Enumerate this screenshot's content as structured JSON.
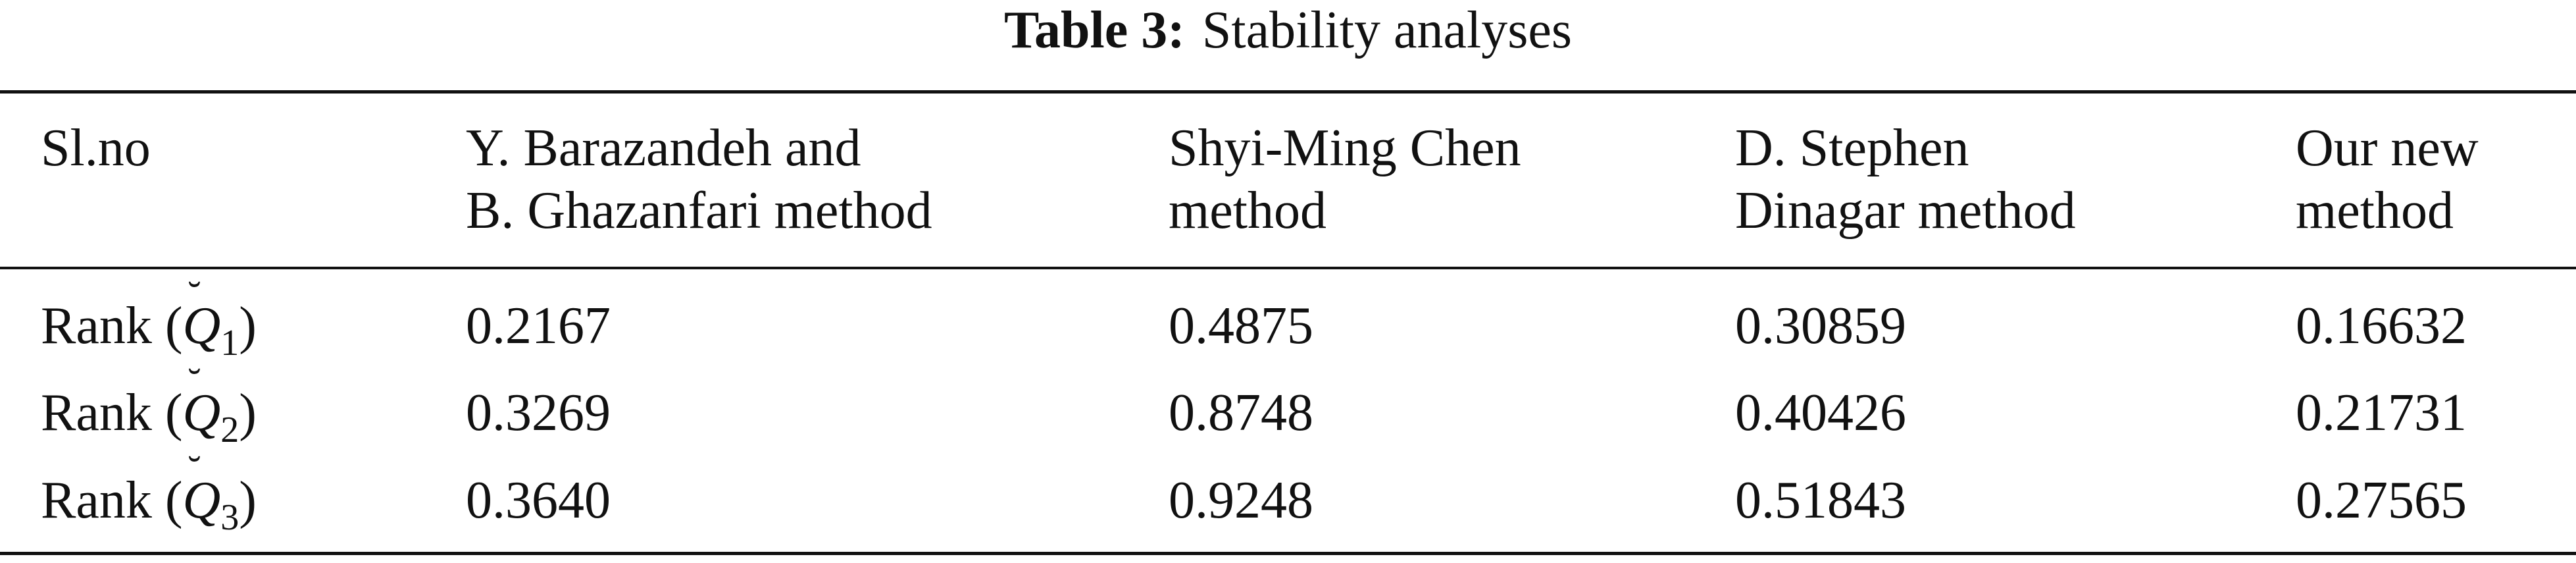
{
  "caption": {
    "label": "Table 3:",
    "title": "Stability analyses"
  },
  "table": {
    "headers": [
      [
        "Sl.no"
      ],
      [
        "Y. Barazandeh and",
        "B. Ghazanfari method"
      ],
      [
        "Shyi-Ming Chen",
        "method"
      ],
      [
        "D. Stephen",
        "Dinagar method"
      ],
      [
        "Our new",
        "method"
      ]
    ],
    "rows": [
      {
        "rank_prefix": "Rank (",
        "symbol": "Q",
        "breve": "˘",
        "subscript": "1",
        "rank_suffix": ")",
        "values": [
          "0.2167",
          "0.4875",
          "0.30859",
          "0.16632"
        ]
      },
      {
        "rank_prefix": "Rank (",
        "symbol": "Q",
        "breve": "˘",
        "subscript": "2",
        "rank_suffix": ")",
        "values": [
          "0.3269",
          "0.8748",
          "0.40426",
          "0.21731"
        ]
      },
      {
        "rank_prefix": "Rank (",
        "symbol": "Q",
        "breve": "˘",
        "subscript": "3",
        "rank_suffix": ")",
        "values": [
          "0.3640",
          "0.9248",
          "0.51843",
          "0.27565"
        ]
      }
    ]
  }
}
